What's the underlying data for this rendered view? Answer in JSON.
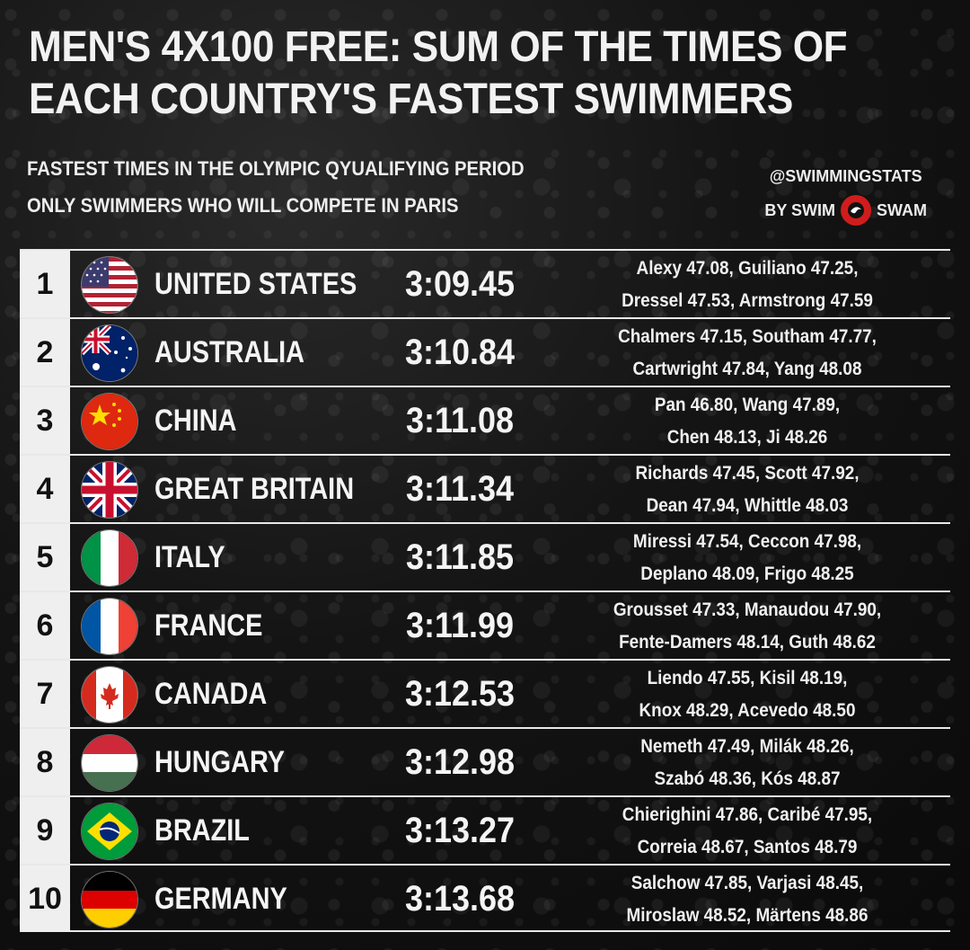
{
  "title": "MEN'S 4X100 FREE: SUM OF THE TIMES OF EACH COUNTRY'S FASTEST SWIMMERS",
  "subtitle_1": "FASTEST TIMES IN THE OLYMPIC QYUALIFYING PERIOD",
  "subtitle_2": "ONLY SWIMMERS WHO WILL COMPETE IN PARIS",
  "credit": {
    "handle": "@SWIMMINGSTATS",
    "by": "BY SWIM",
    "brand_end": "SWAM"
  },
  "colors": {
    "background": "#141414",
    "rank_cell": "#efefef",
    "logo_red": "#d11c1c"
  },
  "rows": [
    {
      "rank": "1",
      "country": "UNITED STATES",
      "flag": "usa-flag-icon",
      "time": "3:09.45",
      "swimmers_1": "Alexy 47.08, Guiliano 47.25,",
      "swimmers_2": "Dressel 47.53, Armstrong 47.59"
    },
    {
      "rank": "2",
      "country": "AUSTRALIA",
      "flag": "australia-flag-icon",
      "time": "3:10.84",
      "swimmers_1": "Chalmers 47.15, Southam 47.77,",
      "swimmers_2": "Cartwright 47.84, Yang 48.08"
    },
    {
      "rank": "3",
      "country": "CHINA",
      "flag": "china-flag-icon",
      "time": "3:11.08",
      "swimmers_1": "Pan 46.80, Wang 47.89,",
      "swimmers_2": "Chen 48.13, Ji 48.26"
    },
    {
      "rank": "4",
      "country": "GREAT BRITAIN",
      "flag": "uk-flag-icon",
      "time": "3:11.34",
      "swimmers_1": "Richards 47.45, Scott 47.92,",
      "swimmers_2": "Dean 47.94, Whittle 48.03"
    },
    {
      "rank": "5",
      "country": "ITALY",
      "flag": "italy-flag-icon",
      "time": "3:11.85",
      "swimmers_1": "Miressi 47.54, Ceccon 47.98,",
      "swimmers_2": "Deplano 48.09, Frigo 48.25"
    },
    {
      "rank": "6",
      "country": "FRANCE",
      "flag": "france-flag-icon",
      "time": "3:11.99",
      "swimmers_1": "Grousset 47.33, Manaudou 47.90,",
      "swimmers_2": "Fente-Damers 48.14, Guth 48.62"
    },
    {
      "rank": "7",
      "country": "CANADA",
      "flag": "canada-flag-icon",
      "time": "3:12.53",
      "swimmers_1": "Liendo 47.55, Kisil 48.19,",
      "swimmers_2": "Knox 48.29, Acevedo 48.50"
    },
    {
      "rank": "8",
      "country": "HUNGARY",
      "flag": "hungary-flag-icon",
      "time": "3:12.98",
      "swimmers_1": "Nemeth 47.49, Milák 48.26,",
      "swimmers_2": "Szabó 48.36, Kós 48.87"
    },
    {
      "rank": "9",
      "country": "BRAZIL",
      "flag": "brazil-flag-icon",
      "time": "3:13.27",
      "swimmers_1": "Chierighini 47.86, Caribé 47.95,",
      "swimmers_2": "Correia 48.67, Santos 48.79"
    },
    {
      "rank": "10",
      "country": "GERMANY",
      "flag": "germany-flag-icon",
      "time": "3:13.68",
      "swimmers_1": "Salchow 47.85, Varjasi 48.45,",
      "swimmers_2": "Miroslaw 48.52, Märtens 48.86"
    }
  ]
}
